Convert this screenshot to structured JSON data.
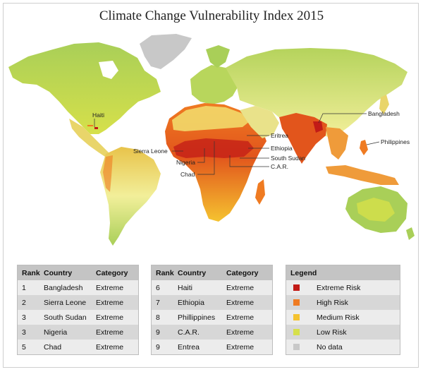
{
  "title": "Climate Change Vulnerability Index 2015",
  "colors": {
    "water": "#ffffff",
    "extreme": "#c21b17",
    "high": "#ef7b22",
    "medium": "#f5c330",
    "low": "#d6e04a",
    "low_green": "#8bc24a",
    "light": "#f2efa6",
    "nodata": "#c8c8c8"
  },
  "map_labels": {
    "haiti": "Haiti",
    "sierra_leone": "Sierra Leone",
    "nigeria": "Nigeria",
    "chad": "Chad",
    "eritrea": "Eritrea",
    "ethiopia": "Ethiopia",
    "south_sudan": "South Sudan",
    "car": "C.A.R.",
    "bangladesh": "Bangladesh",
    "philippines": "Philippines"
  },
  "table_headers": {
    "rank": "Rank",
    "country": "Country",
    "category": "Category"
  },
  "table1": [
    {
      "rank": "1",
      "country": "Bangladesh",
      "category": "Extreme"
    },
    {
      "rank": "2",
      "country": "Sierra Leone",
      "category": "Extreme"
    },
    {
      "rank": "3",
      "country": "South Sudan",
      "category": "Extreme"
    },
    {
      "rank": "3",
      "country": "Nigeria",
      "category": "Extreme"
    },
    {
      "rank": "5",
      "country": "Chad",
      "category": "Extreme"
    }
  ],
  "table2": [
    {
      "rank": "6",
      "country": "Haiti",
      "category": "Extreme"
    },
    {
      "rank": "7",
      "country": "Ethiopia",
      "category": "Extreme"
    },
    {
      "rank": "8",
      "country": "Phillippines",
      "category": "Extreme"
    },
    {
      "rank": "9",
      "country": "C.A.R.",
      "category": "Extreme"
    },
    {
      "rank": "9",
      "country": "Entrea",
      "category": "Extreme"
    }
  ],
  "legend": {
    "title": "Legend",
    "items": [
      {
        "label": "Extreme Risk",
        "color": "#c21b17"
      },
      {
        "label": "High Risk",
        "color": "#ef7b22"
      },
      {
        "label": "Medium Risk",
        "color": "#f5c330"
      },
      {
        "label": "Low Risk",
        "color": "#d6e04a"
      },
      {
        "label": "No data",
        "color": "#c8c8c8"
      }
    ]
  }
}
